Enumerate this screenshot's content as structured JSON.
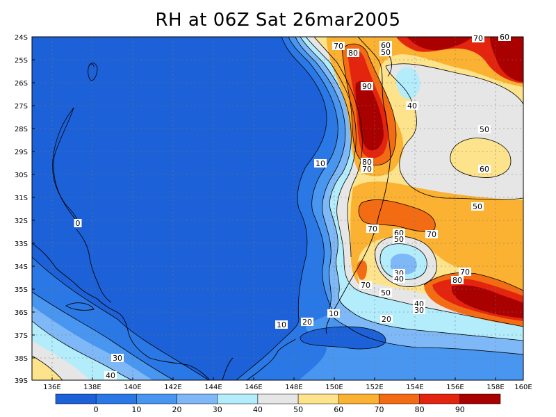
{
  "title": "RH at 06Z Sat 26mar2005",
  "lat_labels": [
    "24S",
    "25S",
    "26S",
    "27S",
    "28S",
    "29S",
    "30S",
    "31S",
    "32S",
    "33S",
    "34S",
    "35S",
    "36S",
    "37S",
    "38S",
    "39S"
  ],
  "lon_labels": [
    "136E",
    "138E",
    "140E",
    "142E",
    "144E",
    "146E",
    "148E",
    "150E",
    "152E",
    "154E",
    "156E",
    "158E",
    "160E"
  ],
  "colorbar": {
    "labels": [
      "0",
      "10",
      "20",
      "30",
      "40",
      "50",
      "60",
      "70",
      "80",
      "90"
    ],
    "colors": [
      "#1c61d8",
      "#2a78e6",
      "#4996f0",
      "#7fb8f6",
      "#b3ecfa",
      "#e6e6e6",
      "#fde38b",
      "#fbb131",
      "#f36c14",
      "#e3240e",
      "#a90000"
    ]
  },
  "contour_labels": [
    {
      "text": "70"
    },
    {
      "text": "80"
    },
    {
      "text": "60"
    },
    {
      "text": "50"
    },
    {
      "text": "90"
    },
    {
      "text": "40"
    },
    {
      "text": "50"
    },
    {
      "text": "60"
    },
    {
      "text": "10"
    },
    {
      "text": "80"
    },
    {
      "text": "70"
    },
    {
      "text": "0"
    },
    {
      "text": "50"
    },
    {
      "text": "70"
    },
    {
      "text": "60"
    },
    {
      "text": "50"
    },
    {
      "text": "70"
    },
    {
      "text": "30"
    },
    {
      "text": "40"
    },
    {
      "text": "70"
    },
    {
      "text": "70"
    },
    {
      "text": "80"
    },
    {
      "text": "50"
    },
    {
      "text": "40"
    },
    {
      "text": "30"
    },
    {
      "text": "10"
    },
    {
      "text": "20"
    },
    {
      "text": "10"
    },
    {
      "text": "20"
    },
    {
      "text": "30"
    },
    {
      "text": "40"
    },
    {
      "text": "70"
    },
    {
      "text": "60"
    }
  ]
}
